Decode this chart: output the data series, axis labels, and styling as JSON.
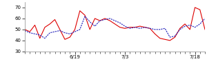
{
  "red_line": [
    50,
    48,
    54,
    42,
    52,
    55,
    59,
    50,
    41,
    43,
    50,
    67,
    63,
    50,
    60,
    58,
    60,
    58,
    55,
    52,
    51,
    52,
    52,
    53,
    52,
    51,
    46,
    42,
    41,
    40,
    43,
    51,
    55,
    50,
    70,
    68,
    50
  ],
  "blue_line": [
    49,
    47,
    46,
    45,
    42,
    47,
    48,
    49,
    47,
    46,
    48,
    50,
    62,
    57,
    53,
    58,
    59,
    60,
    58,
    56,
    53,
    51,
    52,
    51,
    52,
    51,
    50,
    50,
    51,
    43,
    44,
    50,
    53,
    54,
    52,
    55,
    60
  ],
  "xtick_positions": [
    10,
    20,
    34
  ],
  "xtick_labels": [
    "6/19",
    "7/3",
    "7/18"
  ],
  "ylim": [
    30,
    75
  ],
  "yticks": [
    30,
    40,
    50,
    60,
    70
  ],
  "red_color": "#dd0000",
  "blue_color": "#2222bb",
  "bg_color": "#ffffff",
  "linewidth": 0.8
}
